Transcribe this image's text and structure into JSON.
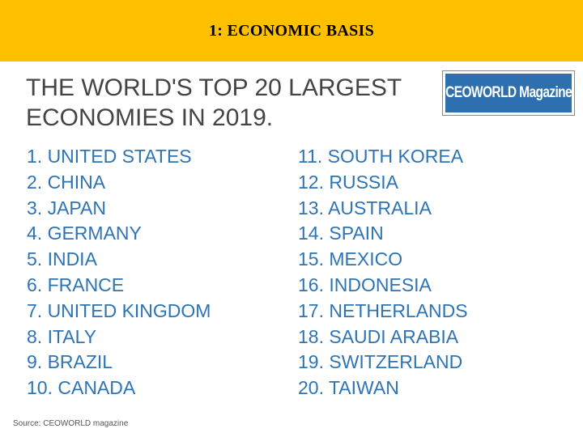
{
  "header": {
    "title": "1: ECONOMIC BASIS"
  },
  "slide": {
    "heading_line1": "THE WORLD'S TOP 20 LARGEST",
    "heading_line2": "ECONOMIES IN 2019.",
    "logo_text": "CEOWORLD Magazine",
    "left_column": [
      "1. UNITED STATES",
      "2. CHINA",
      "3. JAPAN",
      "4. GERMANY",
      "5. INDIA",
      "6. FRANCE",
      "7. UNITED KINGDOM",
      "8. ITALY",
      "9. BRAZIL",
      "10. CANADA"
    ],
    "right_column": [
      "11. SOUTH KOREA",
      "12. RUSSIA",
      "13. AUSTRALIA",
      "14. SPAIN",
      "15. MEXICO",
      "16. INDONESIA",
      "17. NETHERLANDS",
      "18. SAUDI ARABIA",
      "19. SWITZERLAND",
      "20. TAIWAN"
    ],
    "source": "Source: CEOWORLD magazine"
  },
  "colors": {
    "header_bg": "#FFC000",
    "list_text": "#2E74B5",
    "heading_text": "#444444",
    "logo_bg": "#2E6FB0"
  }
}
